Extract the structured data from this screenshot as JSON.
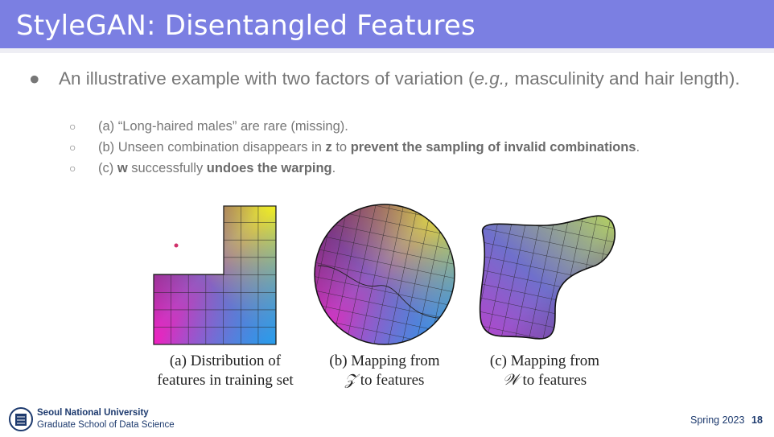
{
  "header": {
    "title": "StyleGAN: Disentangled Features",
    "bar_color": "#7b7fe2"
  },
  "bullets": {
    "main": {
      "before": "An illustrative example with two factors of variation (",
      "italic": "e.g.,",
      "after": " masculinity and hair length)."
    },
    "sub": [
      {
        "text": "(a) “Long-haired males” are rare (missing)."
      },
      {
        "before": "(b) Unseen combination disappears in ",
        "bold1": "z",
        "mid": " to ",
        "bold2": "prevent the sampling of invalid combinations",
        "after": "."
      },
      {
        "before": "(c) ",
        "bold1": "w",
        "mid": " successfully ",
        "bold2": "undoes the warping",
        "after": "."
      }
    ]
  },
  "figure": {
    "captions": [
      {
        "line1": "(a) Distribution of",
        "line2": "features in training set"
      },
      {
        "line1": "(b) Mapping from",
        "symbol": "𝒵",
        "line2": " to features"
      },
      {
        "line1": "(c) Mapping from",
        "symbol": "𝒲",
        "line2": " to features"
      }
    ]
  },
  "footer": {
    "university": "Seoul National University",
    "school": "Graduate School of Data Science",
    "term": "Spring 2023",
    "page": "18"
  }
}
